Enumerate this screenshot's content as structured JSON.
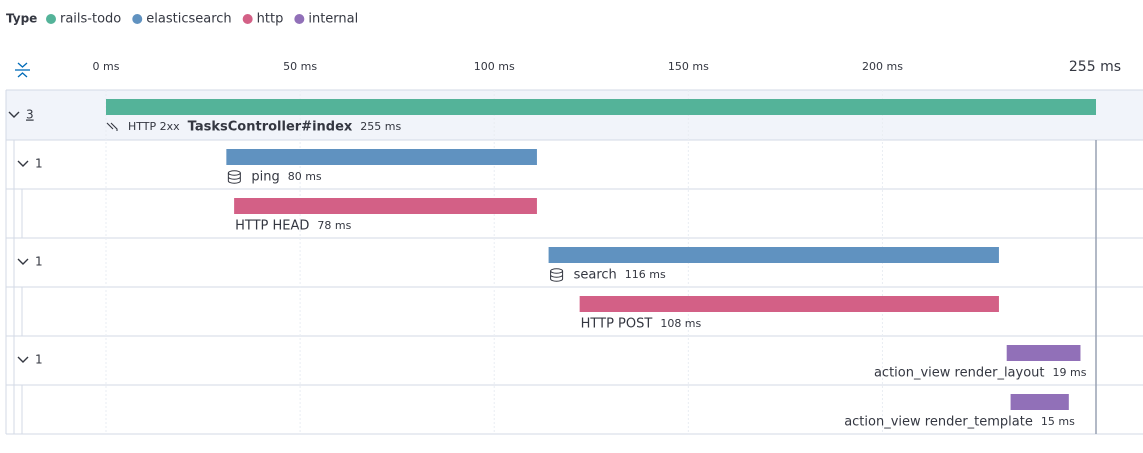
{
  "chart_data": {
    "type": "waterfall",
    "legend_title": "Type",
    "series": [
      {
        "name": "rails-todo",
        "color": "#54b399"
      },
      {
        "name": "elasticsearch",
        "color": "#6092c0"
      },
      {
        "name": "http",
        "color": "#d36086"
      },
      {
        "name": "internal",
        "color": "#9170b8"
      }
    ],
    "xlim": [
      0,
      255
    ],
    "xticks": [
      {
        "value": 0,
        "label": "0 ms"
      },
      {
        "value": 50,
        "label": "50 ms"
      },
      {
        "value": 100,
        "label": "100 ms"
      },
      {
        "value": 150,
        "label": "150 ms"
      },
      {
        "value": 200,
        "label": "200 ms"
      },
      {
        "value": 255,
        "label": "255 ms"
      }
    ],
    "spans": [
      {
        "name": "TasksController#index",
        "service": "rails-todo",
        "start": 0,
        "duration": 255,
        "duration_label": "255 ms",
        "badge": "HTTP 2xx",
        "children": 3
      },
      {
        "name": "ping",
        "service": "elasticsearch",
        "start": 31,
        "duration": 80,
        "duration_label": "80 ms",
        "children": 1
      },
      {
        "name": "HTTP HEAD",
        "service": "http",
        "start": 33,
        "duration": 78,
        "duration_label": "78 ms"
      },
      {
        "name": "search",
        "service": "elasticsearch",
        "start": 114,
        "duration": 116,
        "duration_label": "116 ms",
        "children": 1
      },
      {
        "name": "HTTP POST",
        "service": "http",
        "start": 122,
        "duration": 108,
        "duration_label": "108 ms"
      },
      {
        "name": "action_view render_layout",
        "service": "internal",
        "start": 232,
        "duration": 19,
        "duration_label": "19 ms",
        "children": 1
      },
      {
        "name": "action_view render_template",
        "service": "internal",
        "start": 233,
        "duration": 15,
        "duration_label": "15 ms"
      }
    ]
  }
}
